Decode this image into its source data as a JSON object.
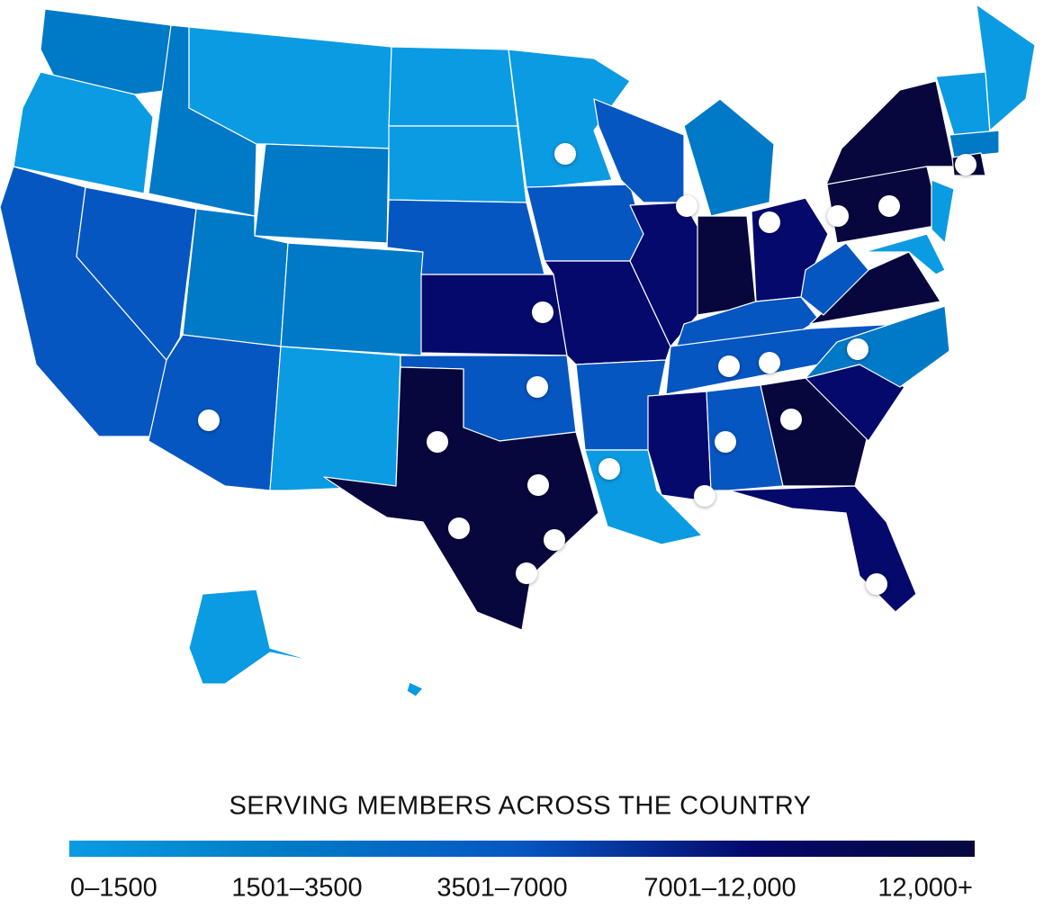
{
  "legend": {
    "title": "SERVING MEMBERS ACROSS THE COUNTRY",
    "bins": [
      {
        "label": "0–1500",
        "color": "#0a9be2"
      },
      {
        "label": "1501–3500",
        "color": "#0079c6"
      },
      {
        "label": "3501–7000",
        "color": "#0656c2"
      },
      {
        "label": "7001–12,000",
        "color": "#05096c"
      },
      {
        "label": "12,000+",
        "color": "#07073e"
      }
    ]
  }
}
